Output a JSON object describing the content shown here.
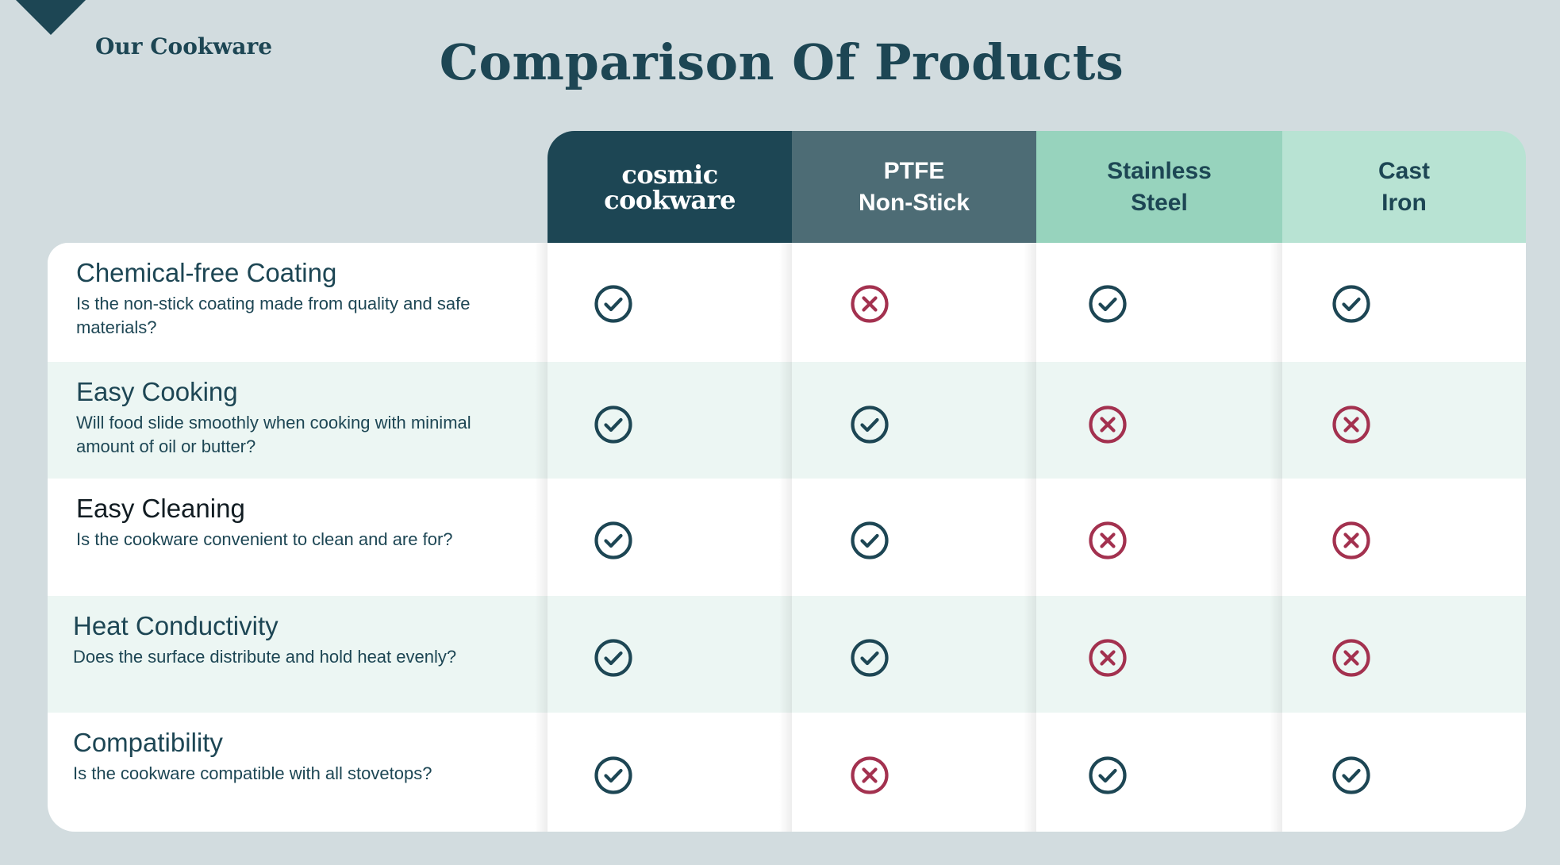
{
  "nav": {
    "brand_link": "Our Cookware"
  },
  "title": "Comparison Of Products",
  "columns": [
    {
      "line1": "cosmic",
      "line2": "cookware"
    },
    {
      "line1": "PTFE",
      "line2": "Non-Stick"
    },
    {
      "line1": "Stainless",
      "line2": "Steel"
    },
    {
      "line1": "Cast",
      "line2": "Iron"
    }
  ],
  "rows": [
    {
      "title": "Chemical-free Coating",
      "desc": "Is the non-stick coating made from quality and safe materials?",
      "values": [
        "yes",
        "no",
        "yes",
        "yes"
      ]
    },
    {
      "title": "Easy Cooking",
      "desc": "Will food slide smoothly when cooking with minimal amount of oil or butter?",
      "values": [
        "yes",
        "yes",
        "no",
        "no"
      ]
    },
    {
      "title": "Easy Cleaning",
      "desc": "Is the cookware convenient to clean and are for?",
      "values": [
        "yes",
        "yes",
        "no",
        "no"
      ]
    },
    {
      "title": "Heat Conductivity",
      "desc": "Does the surface distribute and hold heat evenly?",
      "values": [
        "yes",
        "yes",
        "no",
        "no"
      ]
    },
    {
      "title": "Compatibility",
      "desc": "Is the cookware compatible with all stovetops?",
      "values": [
        "yes",
        "no",
        "yes",
        "yes"
      ]
    }
  ],
  "colors": {
    "check": "#1d4654",
    "cross": "#a3314f",
    "dark": "#1d4654"
  }
}
